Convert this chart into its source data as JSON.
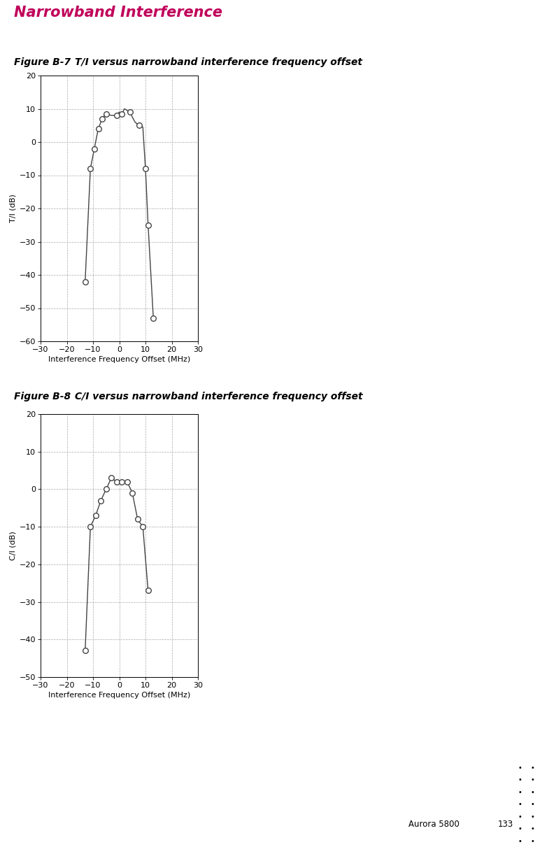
{
  "fig_title": "Narrowband Interference",
  "fig_title_color": "#c0005a",
  "fig1_label": "Figure B-7",
  "fig1_tab": "        ",
  "fig1_caption": "T/I versus narrowband interference frequency offset",
  "fig2_label": "Figure B-8",
  "fig2_tab": "        ",
  "fig2_caption": "C/I versus narrowband interference frequency offset",
  "plot1": {
    "x": [
      -13,
      -11,
      -9.5,
      -8,
      -6.5,
      -5,
      -3,
      -1,
      0,
      1,
      2,
      4,
      6,
      7.5,
      9,
      10,
      11,
      13
    ],
    "y": [
      -42,
      -8,
      -2,
      4,
      7,
      8.5,
      8,
      8,
      9,
      8.5,
      10,
      9,
      6,
      5,
      4.5,
      -8,
      -25,
      -53
    ],
    "marked_x": [
      -13,
      -11,
      -9.5,
      -8,
      -6.5,
      -5,
      -1,
      1,
      4,
      7.5,
      10,
      11,
      13
    ],
    "marked_y": [
      -42,
      -8,
      -2,
      4,
      7,
      8.5,
      8,
      8.5,
      9,
      5,
      -8,
      -25,
      -53
    ],
    "ylabel": "T/I (dB)",
    "xlabel": "Interference Frequency Offset (MHz)",
    "xlim": [
      -30,
      30
    ],
    "ylim": [
      -60,
      20
    ],
    "xticks": [
      -30,
      -20,
      -10,
      0,
      10,
      20,
      30
    ],
    "yticks": [
      -60,
      -50,
      -40,
      -30,
      -20,
      -10,
      0,
      10,
      20
    ]
  },
  "plot2": {
    "x": [
      -13,
      -11,
      -9,
      -7,
      -5,
      -3,
      -1,
      1,
      3,
      5,
      7,
      9,
      11
    ],
    "y": [
      -43,
      -10,
      -7,
      -3,
      0,
      3,
      2,
      2,
      2,
      -1,
      -8,
      -10,
      -27
    ],
    "marked_x": [
      -13,
      -11,
      -9,
      -7,
      -5,
      -3,
      -1,
      1,
      3,
      5,
      7,
      9,
      11
    ],
    "marked_y": [
      -43,
      -10,
      -7,
      -3,
      0,
      3,
      2,
      2,
      2,
      -1,
      -8,
      -10,
      -27
    ],
    "ylabel": "C/I (dB)",
    "xlabel": "Interference Frequency Offset (MHz)",
    "xlim": [
      -30,
      30
    ],
    "ylim": [
      -50,
      20
    ],
    "xticks": [
      -30,
      -20,
      -10,
      0,
      10,
      20,
      30
    ],
    "yticks": [
      -50,
      -40,
      -30,
      -20,
      -10,
      0,
      10,
      20
    ]
  },
  "footer_text": "Aurora 5800",
  "footer_page": "133",
  "line_color": "#444444",
  "marker_facecolor": "#ffffff",
  "marker_edgecolor": "#444444",
  "background_color": "#ffffff",
  "grid_color": "#aaaaaa",
  "title_fontsize": 15,
  "caption_fontsize": 10,
  "axis_label_fontsize": 8,
  "tick_fontsize": 8
}
